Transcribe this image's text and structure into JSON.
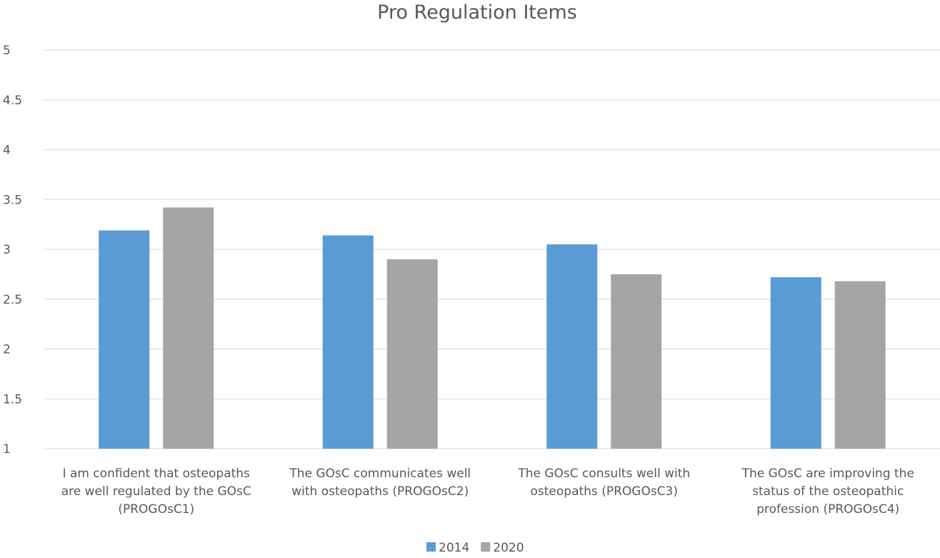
{
  "chart_data": {
    "type": "bar",
    "title": "Pro Regulation Items",
    "xlabel": "",
    "ylabel": "",
    "ylim": [
      1,
      5
    ],
    "yticks": [
      "1",
      "1.5",
      "2",
      "2.5",
      "3",
      "3.5",
      "4",
      "4.5",
      "5"
    ],
    "categories": [
      "I am confident that osteopaths are well regulated by the GOsC (PROGOsC1)",
      "The GOsC communicates well with osteopaths (PROGOsC2)",
      "The GOsC consults well with osteopaths (PROGOsC3)",
      "The GOsC are improving the status of the osteopathic profession (PROGOsC4)"
    ],
    "category_lines": [
      [
        "I am confident that osteopaths",
        "are well regulated by the GOsC",
        "(PROGOsC1)"
      ],
      [
        "The GOsC communicates well",
        "with osteopaths (PROGOsC2)"
      ],
      [
        "The GOsC consults well with",
        "osteopaths (PROGOsC3)"
      ],
      [
        "The GOsC are improving the",
        "status of the osteopathic",
        "profession (PROGOsC4)"
      ]
    ],
    "series": [
      {
        "name": "2014",
        "color": "#5b9bd5",
        "values": [
          3.19,
          3.14,
          3.05,
          2.72
        ]
      },
      {
        "name": "2020",
        "color": "#a5a5a5",
        "values": [
          3.42,
          2.9,
          2.75,
          2.68
        ]
      }
    ],
    "grid": true,
    "legend_position": "bottom"
  }
}
